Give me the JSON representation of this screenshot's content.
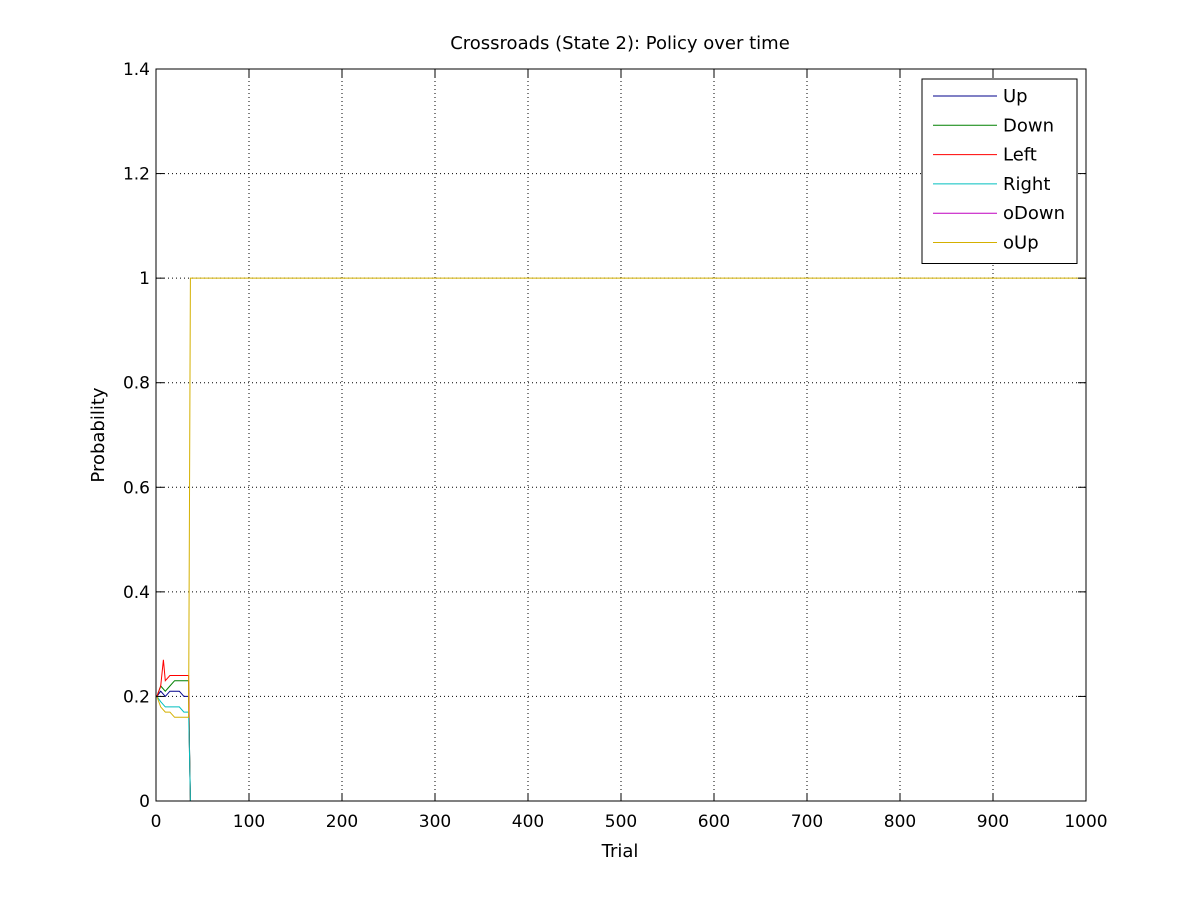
{
  "chart_data": {
    "type": "line",
    "title": "Crossroads (State 2): Policy over time",
    "xlabel": "Trial",
    "ylabel": "Probability",
    "xlim": [
      0,
      1000
    ],
    "ylim": [
      0,
      1.4
    ],
    "xticks": [
      0,
      100,
      200,
      300,
      400,
      500,
      600,
      700,
      800,
      900,
      1000
    ],
    "yticks": [
      0,
      0.2,
      0.4,
      0.6,
      0.8,
      1,
      1.2,
      1.4
    ],
    "xtick_labels": [
      "0",
      "100",
      "200",
      "300",
      "400",
      "500",
      "600",
      "700",
      "800",
      "900",
      "1000"
    ],
    "ytick_labels": [
      "0",
      "0.2",
      "0.4",
      "0.6",
      "0.8",
      "1",
      "1.2",
      "1.4"
    ],
    "grid": true,
    "legend_position": "top-right",
    "series": [
      {
        "name": "Up",
        "color": "#00008b",
        "x": [
          1,
          5,
          10,
          15,
          20,
          25,
          30,
          35,
          36,
          37,
          40,
          50,
          1000
        ],
        "y": [
          0.2,
          0.21,
          0.2,
          0.21,
          0.21,
          0.21,
          0.2,
          0.2,
          0.1,
          0,
          0,
          0,
          0
        ]
      },
      {
        "name": "Down",
        "color": "#008000",
        "x": [
          1,
          5,
          10,
          15,
          20,
          25,
          30,
          35,
          36,
          37,
          40,
          50,
          1000
        ],
        "y": [
          0.2,
          0.22,
          0.21,
          0.22,
          0.23,
          0.23,
          0.23,
          0.23,
          0.1,
          0,
          0,
          0,
          0
        ]
      },
      {
        "name": "Left",
        "color": "#ff0000",
        "x": [
          1,
          5,
          8,
          10,
          15,
          20,
          25,
          30,
          35,
          36,
          37,
          40,
          50,
          1000
        ],
        "y": [
          0.2,
          0.22,
          0.27,
          0.23,
          0.24,
          0.24,
          0.24,
          0.24,
          0.24,
          0.09,
          0,
          0,
          0,
          0
        ]
      },
      {
        "name": "Right",
        "color": "#00bfbf",
        "x": [
          1,
          5,
          10,
          15,
          20,
          25,
          30,
          35,
          36,
          37,
          40,
          50,
          1000
        ],
        "y": [
          0.2,
          0.19,
          0.18,
          0.18,
          0.18,
          0.18,
          0.17,
          0.17,
          0.09,
          0,
          0,
          0,
          0
        ]
      },
      {
        "name": "oDown",
        "color": "#bf00bf",
        "x": [
          1,
          10,
          20,
          30,
          36,
          37,
          40,
          50,
          1000
        ],
        "y": [
          0,
          0,
          0,
          0,
          0,
          0,
          0,
          0,
          0
        ]
      },
      {
        "name": "oUp",
        "color": "#d4b000",
        "x": [
          1,
          5,
          10,
          15,
          20,
          25,
          30,
          35,
          36,
          37,
          40,
          50,
          1000
        ],
        "y": [
          0.2,
          0.18,
          0.17,
          0.17,
          0.16,
          0.16,
          0.16,
          0.16,
          0.58,
          1,
          1,
          1,
          1
        ]
      }
    ]
  }
}
